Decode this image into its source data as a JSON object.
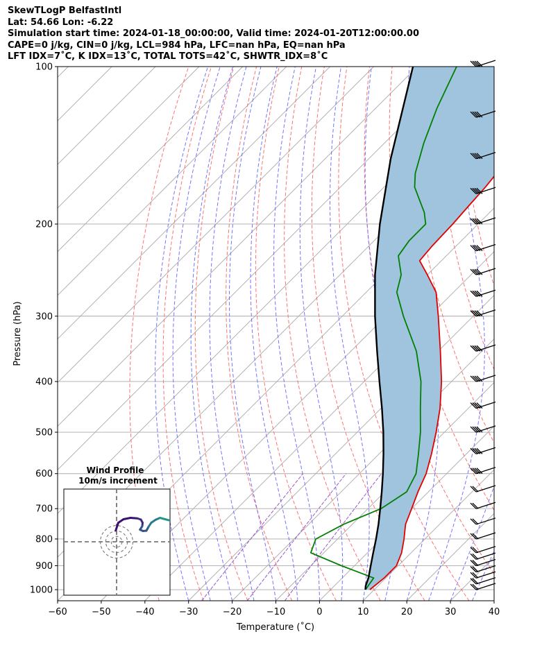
{
  "header": {
    "line1": "SkewTLogP BelfastIntl",
    "line2": "Lat: 54.66   Lon: -6.22",
    "line3": "Simulation start time: 2024-01-18_00:00:00, Valid time: 2024-01-20T12:00:00.00",
    "line4": "CAPE=0 j/kg, CIN=0 j/kg, LCL=984 hPa, LFC=nan hPa, EQ=nan hPa",
    "line5": "LFT IDX=7˚C, K IDX=13˚C, TOTAL TOTS=42˚C, SHWTR_IDX=8˚C"
  },
  "chart_data": {
    "type": "line",
    "xlabel": "Temperature (˚C)",
    "ylabel": "Pressure (hPa)",
    "x_ticks": [
      "−60",
      "−50",
      "−40",
      "−30",
      "−20",
      "−10",
      "0",
      "10",
      "20",
      "30",
      "40"
    ],
    "y_ticks": [
      "100",
      "200",
      "300",
      "400",
      "500",
      "600",
      "700",
      "800",
      "900",
      "1000"
    ],
    "xlim": [
      -60,
      40
    ],
    "ylim": [
      1050,
      100
    ],
    "y_scale": "log",
    "skew": true,
    "grid": true,
    "series": [
      {
        "id": "temperature",
        "color": "#e00000",
        "points": [
          [
            1000,
            9
          ],
          [
            950,
            9.6
          ],
          [
            900,
            9.6
          ],
          [
            850,
            7.8
          ],
          [
            800,
            5.2
          ],
          [
            750,
            2.2
          ],
          [
            700,
            0
          ],
          [
            650,
            -2.4
          ],
          [
            600,
            -4.7
          ],
          [
            550,
            -8
          ],
          [
            500,
            -11.9
          ],
          [
            450,
            -16.5
          ],
          [
            400,
            -22.3
          ],
          [
            350,
            -29.5
          ],
          [
            300,
            -38
          ],
          [
            270,
            -44
          ],
          [
            250,
            -50
          ],
          [
            235,
            -55
          ],
          [
            220,
            -55.5
          ],
          [
            200,
            -55.8
          ],
          [
            185,
            -56.3
          ],
          [
            170,
            -56.8
          ],
          [
            150,
            -58
          ],
          [
            130,
            -61
          ],
          [
            115,
            -64
          ],
          [
            100,
            -67
          ]
        ]
      },
      {
        "id": "dewpoint",
        "color": "#008000",
        "points": [
          [
            1000,
            8
          ],
          [
            950,
            7.2
          ],
          [
            900,
            -3
          ],
          [
            850,
            -13
          ],
          [
            800,
            -15
          ],
          [
            750,
            -12
          ],
          [
            700,
            -7
          ],
          [
            650,
            -5
          ],
          [
            600,
            -7
          ],
          [
            550,
            -11
          ],
          [
            500,
            -15.5
          ],
          [
            450,
            -21
          ],
          [
            400,
            -27
          ],
          [
            350,
            -35
          ],
          [
            300,
            -46
          ],
          [
            270,
            -53
          ],
          [
            250,
            -56
          ],
          [
            230,
            -61
          ],
          [
            215,
            -62
          ],
          [
            200,
            -62
          ],
          [
            190,
            -65
          ],
          [
            170,
            -73
          ],
          [
            160,
            -76
          ],
          [
            140,
            -81
          ],
          [
            120,
            -86
          ],
          [
            100,
            -91
          ]
        ]
      },
      {
        "id": "parcel",
        "color": "#000000",
        "points": [
          [
            1000,
            8
          ],
          [
            984,
            7.2
          ],
          [
            950,
            6
          ],
          [
            900,
            3.7
          ],
          [
            850,
            1.3
          ],
          [
            800,
            -1.2
          ],
          [
            750,
            -4
          ],
          [
            700,
            -7.2
          ],
          [
            650,
            -10.7
          ],
          [
            600,
            -14.6
          ],
          [
            550,
            -19
          ],
          [
            500,
            -24
          ],
          [
            450,
            -29.8
          ],
          [
            400,
            -36.5
          ],
          [
            350,
            -44
          ],
          [
            300,
            -52.5
          ],
          [
            250,
            -62
          ],
          [
            200,
            -72.5
          ],
          [
            150,
            -85
          ],
          [
            100,
            -101
          ]
        ]
      }
    ],
    "cin_fill_color": "#a0c4de",
    "dry_adiabat_color": "#ff6060",
    "moist_adiabat_color": "#6464ff",
    "mixing_ratio_color": "#9955cc",
    "isotherm_color": "#aaaaaa",
    "barb_pressures": [
      1000,
      975,
      950,
      925,
      900,
      875,
      850,
      800,
      750,
      700,
      650,
      600,
      550,
      500,
      450,
      400,
      350,
      300,
      275,
      250,
      225,
      200,
      175,
      150,
      125,
      100
    ],
    "inset": {
      "title_line1": "Wind Profile",
      "title_line2": "10m/s increment",
      "rings_mps": [
        10,
        20,
        30
      ],
      "hodograph": [
        [
          -0.5,
          -1.5
        ],
        [
          1,
          3
        ],
        [
          4,
          5
        ],
        [
          8,
          5.8
        ],
        [
          12,
          5.5
        ],
        [
          14,
          4.8
        ],
        [
          15,
          3
        ],
        [
          14.8,
          1
        ],
        [
          13.5,
          -1
        ],
        [
          15.2,
          -1.8
        ],
        [
          17.2,
          -1.6
        ],
        [
          18.5,
          0.8
        ],
        [
          20,
          3
        ],
        [
          22.5,
          4.7
        ],
        [
          25,
          5.8
        ],
        [
          28,
          5
        ],
        [
          31,
          4.2
        ]
      ]
    }
  }
}
